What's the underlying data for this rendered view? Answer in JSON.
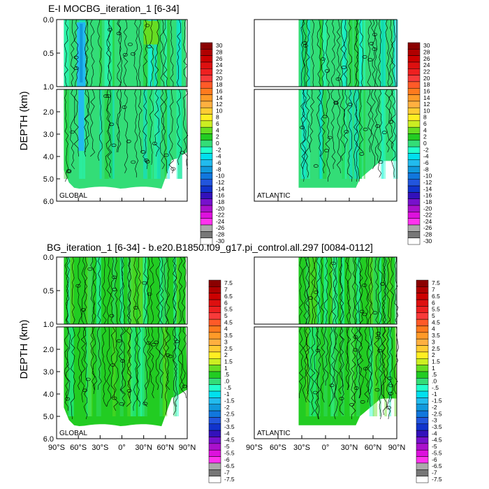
{
  "figure": {
    "title_top": "E-I MOCBG_iteration_1 [6-34]",
    "title_bottom": "BG_iteration_1 [6-34] - b.e20.B1850.f09_g17.pi_control.all.297 [0084-0112]",
    "ylabel": "DEPTH (km)"
  },
  "chart_data": [
    {
      "type": "heatmap",
      "row": "top",
      "panel_label": "GLOBAL",
      "ylabel": "DEPTH (km)",
      "y_ticks_upper": [
        "0.0",
        "0.5",
        "1.0"
      ],
      "y_ticks_lower": [
        "2.0",
        "3.0",
        "4.0",
        "5.0",
        "6.0"
      ],
      "x_ticks": [],
      "xlim": [
        -90,
        90
      ],
      "depth_range": [
        0,
        6
      ],
      "ocean_lat_range": [
        -80,
        90
      ],
      "dominant_range": [
        -2,
        2
      ],
      "colorbar": {
        "levels": [
          "30",
          "28",
          "26",
          "24",
          "22",
          "20",
          "18",
          "16",
          "14",
          "12",
          "10",
          "8",
          "6",
          "4",
          "2",
          "0",
          "-2",
          "-4",
          "-6",
          "-8",
          "-10",
          "-12",
          "-14",
          "-16",
          "-18",
          "-20",
          "-22",
          "-24",
          "-26",
          "-28",
          "-30"
        ]
      }
    },
    {
      "type": "heatmap",
      "row": "top",
      "panel_label": "ATLANTIC",
      "y_ticks_upper": [],
      "y_ticks_lower": [],
      "x_ticks": [],
      "xlim": [
        -90,
        90
      ],
      "depth_range": [
        0,
        6
      ],
      "ocean_lat_range": [
        -34,
        90
      ],
      "dominant_range": [
        -2,
        2
      ],
      "colorbar": {
        "levels": [
          "30",
          "28",
          "26",
          "24",
          "22",
          "20",
          "18",
          "16",
          "14",
          "12",
          "10",
          "8",
          "6",
          "4",
          "2",
          "0",
          "-2",
          "-4",
          "-6",
          "-8",
          "-10",
          "-12",
          "-14",
          "-16",
          "-18",
          "-20",
          "-22",
          "-24",
          "-26",
          "-28",
          "-30"
        ]
      }
    },
    {
      "type": "heatmap",
      "row": "bottom",
      "panel_label": "GLOBAL",
      "ylabel": "DEPTH (km)",
      "y_ticks_upper": [
        "0.0",
        "0.5",
        "1.0"
      ],
      "y_ticks_lower": [
        "2.0",
        "3.0",
        "4.0",
        "5.0",
        "6.0"
      ],
      "x_ticks": [
        "90°S",
        "60°S",
        "30°S",
        "0°",
        "30°N",
        "60°N",
        "90°N"
      ],
      "xlim": [
        -90,
        90
      ],
      "depth_range": [
        0,
        6
      ],
      "ocean_lat_range": [
        -80,
        90
      ],
      "dominant_range": [
        0,
        0.5
      ],
      "colorbar": {
        "levels": [
          "7.5",
          "7",
          "6.5",
          "6",
          "5.5",
          "5",
          "4.5",
          "4",
          "3.5",
          "3",
          "2.5",
          "2",
          "1.5",
          "1",
          ".5",
          ".0",
          "-.5",
          "-1",
          "-1.5",
          "-2",
          "-2.5",
          "-3",
          "-3.5",
          "-4",
          "-4.5",
          "-5",
          "-5.5",
          "-6",
          "-6.5",
          "-7",
          "-7.5"
        ]
      }
    },
    {
      "type": "heatmap",
      "row": "bottom",
      "panel_label": "ATLANTIC",
      "y_ticks_upper": [],
      "y_ticks_lower": [],
      "x_ticks": [
        "90°S",
        "60°S",
        "30°S",
        "0°",
        "30°N",
        "60°N",
        "90°N"
      ],
      "xlim": [
        -90,
        90
      ],
      "depth_range": [
        0,
        6
      ],
      "ocean_lat_range": [
        -34,
        90
      ],
      "dominant_range": [
        0,
        0.5
      ],
      "colorbar": {
        "levels": [
          "7.5",
          "7",
          "6.5",
          "6",
          "5.5",
          "5",
          "4.5",
          "4",
          "3.5",
          "3",
          "2.5",
          "2",
          "1.5",
          "1",
          ".5",
          ".0",
          "-.5",
          "-1",
          "-1.5",
          "-2",
          "-2.5",
          "-3",
          "-3.5",
          "-4",
          "-4.5",
          "-5",
          "-5.5",
          "-6",
          "-6.5",
          "-7",
          "-7.5"
        ]
      }
    }
  ],
  "colorbar_colors": [
    "#8b0000",
    "#b00000",
    "#cc0000",
    "#dd1010",
    "#ee2020",
    "#f83a3a",
    "#ff5a28",
    "#ff7a1e",
    "#ff9a28",
    "#ffb040",
    "#ffcc33",
    "#ffee22",
    "#ccee22",
    "#66dd22",
    "#22cc22",
    "#33dd77",
    "#22ffcc",
    "#00e0ee",
    "#22bbee",
    "#1199dd",
    "#1177dd",
    "#2255dd",
    "#1133cc",
    "#3311bb",
    "#7711cc",
    "#aa11cc",
    "#dd11dd",
    "#ff33ee",
    "#aaaaaa",
    "#777777",
    "#ffffff"
  ]
}
